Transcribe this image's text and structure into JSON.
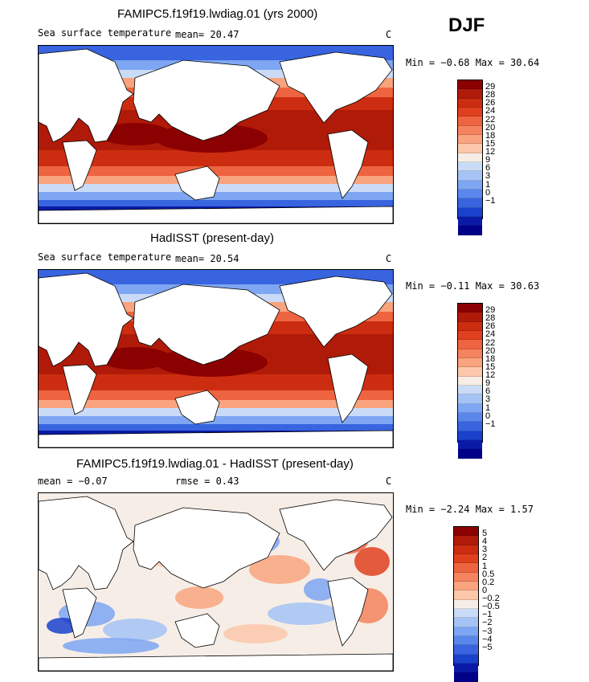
{
  "season": "DJF",
  "colors": {
    "sst_scale": [
      "#8b0000",
      "#b01a08",
      "#cc2d10",
      "#e0401e",
      "#ee6440",
      "#f5845e",
      "#f9a47e",
      "#fcc7aa",
      "#f6eee6",
      "#c9dbf7",
      "#a5c3f5",
      "#7ea6f2",
      "#5a87ec",
      "#3864e0",
      "#1a41cc",
      "#0a1aa6",
      "#000088"
    ],
    "diff_scale": [
      "#8b0000",
      "#b01a08",
      "#cc2d10",
      "#e0401e",
      "#ee6440",
      "#f5845e",
      "#f9a47e",
      "#fcc7aa",
      "#f6eee6",
      "#c9dbf7",
      "#a5c3f5",
      "#7ea6f2",
      "#5a87ec",
      "#3864e0",
      "#1a41cc",
      "#0a1aa6",
      "#000088"
    ],
    "land": "#ffffff",
    "coast": "#000000"
  },
  "panels": [
    {
      "title": "FAMIPC5.f19f19.lwdiag.01 (yrs 2000)",
      "variable": "Sea surface temperature",
      "stat_left": "mean=   20.47",
      "stat_mid": "",
      "unit": "C",
      "minmax": "Min =  −0.68 Max =  30.64",
      "colorbar_labels": [
        "29",
        "28",
        "26",
        "24",
        "22",
        "20",
        "18",
        "15",
        "12",
        "9",
        "6",
        "3",
        "1",
        "0",
        "−1"
      ]
    },
    {
      "title": "HadISST (present-day)",
      "variable": "Sea surface temperature",
      "stat_left": "mean=   20.54",
      "stat_mid": "",
      "unit": "C",
      "minmax": "Min =  −0.11 Max =  30.63",
      "colorbar_labels": [
        "29",
        "28",
        "26",
        "24",
        "22",
        "20",
        "18",
        "15",
        "12",
        "9",
        "6",
        "3",
        "1",
        "0",
        "−1"
      ]
    },
    {
      "title": "FAMIPC5.f19f19.lwdiag.01 - HadISST (present-day)",
      "variable": "",
      "stat_left": "mean =  −0.07",
      "stat_mid": "rmse =    0.43",
      "unit": "C",
      "minmax": "Min =  −2.24 Max =   1.57",
      "colorbar_labels": [
        "5",
        "4",
        "3",
        "2",
        "1",
        "0.5",
        "0.2",
        "0",
        "−0.2",
        "−0.5",
        "−1",
        "−2",
        "−3",
        "−4",
        "−5"
      ]
    }
  ]
}
